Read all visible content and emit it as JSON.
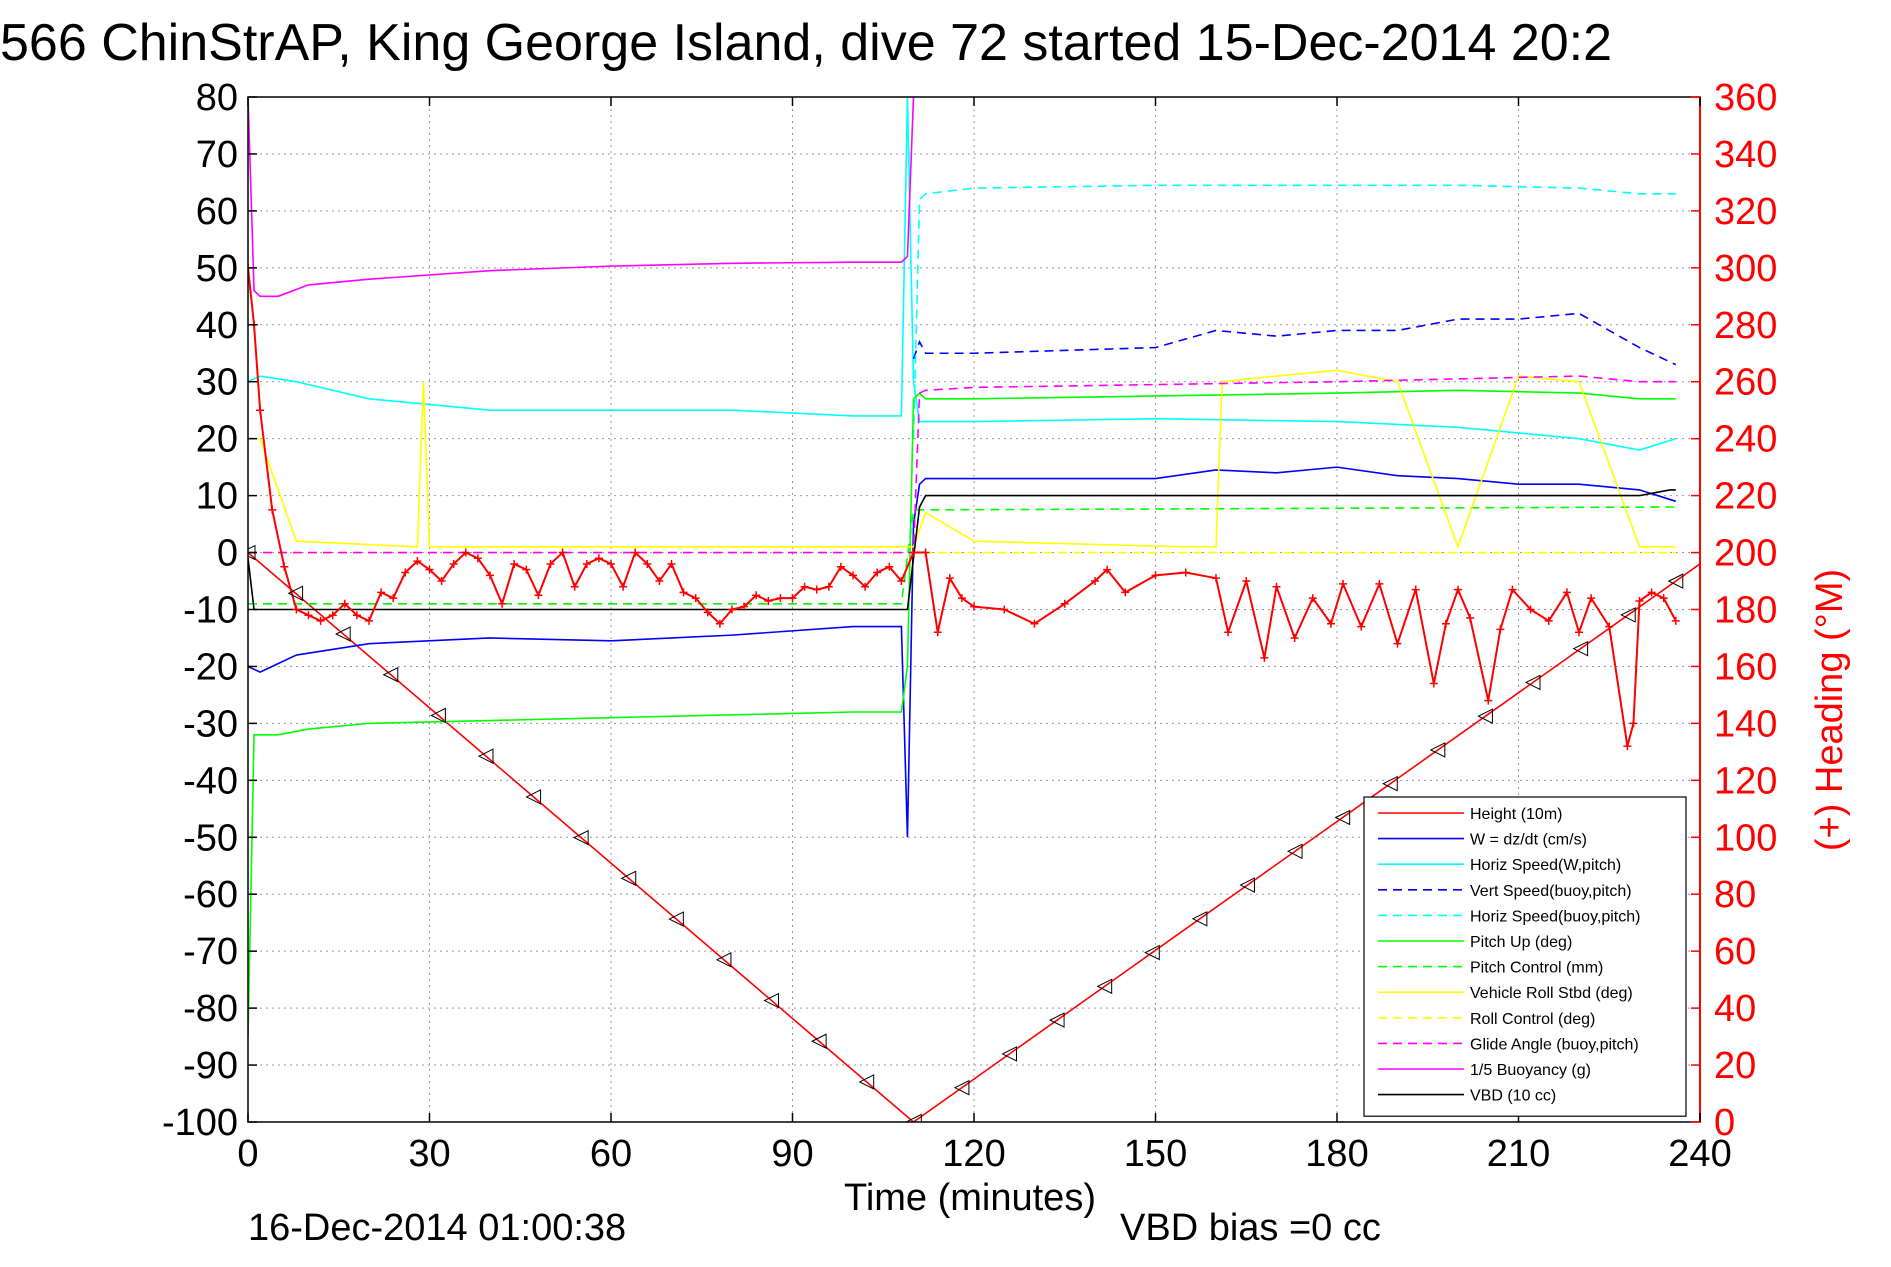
{
  "chart_data": {
    "type": "line",
    "title": "566 ChinStrAP, King George Island, dive 72 started 15-Dec-2014 20:2",
    "xlabel": "Time (minutes)",
    "ylabel_right": "(+) Heading (°M)",
    "footer_left": "16-Dec-2014 01:00:38",
    "footer_right": "VBD bias =0 cc",
    "xlim": [
      0,
      240
    ],
    "ylim_left": [
      -100,
      80
    ],
    "ylim_right": [
      0,
      360
    ],
    "xticks": [
      "0",
      "30",
      "60",
      "90",
      "120",
      "150",
      "180",
      "210",
      "240"
    ],
    "yticks_left": [
      "80",
      "70",
      "60",
      "50",
      "40",
      "30",
      "20",
      "10",
      "0",
      "-10",
      "-20",
      "-30",
      "-40",
      "-50",
      "-60",
      "-70",
      "-80",
      "-90",
      "-100"
    ],
    "yticks_right": [
      "360",
      "340",
      "320",
      "300",
      "280",
      "260",
      "240",
      "220",
      "200",
      "180",
      "160",
      "140",
      "120",
      "100",
      "80",
      "60",
      "40",
      "20",
      "0"
    ],
    "grid": true,
    "legend_position": "bottom-right",
    "right_axis_color": "#ff0000",
    "series": [
      {
        "name": "Height (10m)",
        "color": "#ff0000",
        "dash": "solid",
        "x": [
          0,
          110,
          240
        ],
        "y": [
          0,
          -100,
          -2
        ]
      },
      {
        "name": "W = dz/dt (cm/s)",
        "color": "#0000ff",
        "dash": "solid",
        "x": [
          0,
          2,
          8,
          20,
          40,
          60,
          80,
          100,
          108,
          109,
          110,
          111,
          112,
          120,
          150,
          160,
          170,
          180,
          190,
          200,
          210,
          220,
          230,
          236
        ],
        "y": [
          -20,
          -21,
          -18,
          -16,
          -15,
          -15.5,
          -14.5,
          -13,
          -13,
          -50,
          5,
          12,
          13,
          13,
          13,
          14.5,
          14,
          15,
          13.5,
          13,
          12,
          12,
          11,
          9
        ]
      },
      {
        "name": "Horiz Speed(W,pitch)",
        "color": "#00ffff",
        "dash": "solid",
        "x": [
          0,
          2,
          8,
          20,
          40,
          60,
          80,
          100,
          108,
          109,
          110,
          111,
          112,
          120,
          150,
          180,
          200,
          220,
          230,
          236
        ],
        "y": [
          30,
          31,
          30,
          27,
          25,
          25,
          25,
          24,
          24,
          80,
          30,
          23,
          23,
          23,
          23.5,
          23,
          22,
          20,
          18,
          20
        ]
      },
      {
        "name": "Vert Speed(buoy,pitch)",
        "color": "#0000ff",
        "dash": "dashed",
        "x": [
          110,
          111,
          112,
          120,
          150,
          160,
          170,
          180,
          190,
          200,
          210,
          220,
          230,
          236
        ],
        "y": [
          34,
          37,
          35,
          35,
          36,
          39,
          38,
          39,
          39,
          41,
          41,
          42,
          36,
          33
        ]
      },
      {
        "name": "Horiz Speed(buoy,pitch)",
        "color": "#00ffff",
        "dash": "dashed",
        "x": [
          110,
          111,
          112,
          120,
          150,
          180,
          200,
          220,
          230,
          236
        ],
        "y": [
          20,
          62,
          63,
          64,
          64.5,
          64.5,
          64.5,
          64,
          63,
          63
        ]
      },
      {
        "name": "Pitch Up (deg)",
        "color": "#00ff00",
        "dash": "solid",
        "x": [
          0,
          1,
          2,
          5,
          10,
          20,
          40,
          60,
          80,
          100,
          108,
          109,
          110,
          111,
          112,
          120,
          150,
          180,
          200,
          220,
          230,
          236
        ],
        "y": [
          -85,
          -32,
          -32,
          -32,
          -31,
          -30,
          -29.5,
          -29,
          -28.5,
          -28,
          -28,
          -20,
          27,
          28,
          27,
          27,
          27.5,
          28,
          28.5,
          28,
          27,
          27
        ]
      },
      {
        "name": "Pitch Control (mm)",
        "color": "#00ff00",
        "dash": "dashed",
        "x": [
          0,
          2,
          108,
          110,
          112,
          236
        ],
        "y": [
          -9,
          -9,
          -9,
          7.5,
          7.5,
          8
        ]
      },
      {
        "name": "Vehicle Roll Stbd (deg)",
        "color": "#ffff00",
        "dash": "solid",
        "x": [
          0,
          2,
          8,
          28,
          29,
          30,
          60,
          90,
          108,
          110,
          112,
          120,
          155,
          160,
          161,
          170,
          180,
          190,
          200,
          210,
          220,
          230,
          236
        ],
        "y": [
          20,
          20,
          2,
          1,
          30,
          1,
          1,
          1,
          1,
          1,
          7,
          2,
          1,
          1,
          30,
          31,
          32,
          30,
          1,
          31,
          30,
          1,
          1
        ]
      },
      {
        "name": "Roll Control (deg)",
        "color": "#ffff00",
        "dash": "dashed",
        "x": [
          0,
          2,
          108,
          110,
          236
        ],
        "y": [
          0,
          0,
          0,
          0,
          0
        ]
      },
      {
        "name": "Glide Angle (buoy,pitch)",
        "color": "#ff00ff",
        "dash": "dashed",
        "x": [
          0,
          110,
          111,
          112,
          120,
          150,
          180,
          200,
          220,
          230,
          236
        ],
        "y": [
          0,
          0,
          28,
          28.5,
          29,
          29.5,
          30,
          30.5,
          31,
          30,
          30
        ]
      },
      {
        "name": "1/5 Buoyancy (g)",
        "color": "#ff00ff",
        "dash": "solid",
        "x": [
          0,
          1,
          2,
          5,
          10,
          20,
          40,
          60,
          80,
          100,
          108,
          109,
          110
        ],
        "y": [
          80,
          46,
          45,
          45,
          47,
          48,
          49.5,
          50.3,
          50.8,
          51,
          51,
          52,
          80
        ]
      },
      {
        "name": "VBD (10 cc)",
        "color": "#000000",
        "dash": "solid",
        "x": [
          0,
          1,
          2,
          108,
          109,
          111,
          112,
          230,
          235,
          236
        ],
        "y": [
          -1,
          -10,
          -10,
          -10,
          -10,
          8,
          10,
          10,
          11,
          11
        ]
      },
      {
        "name": "Heading",
        "axis": "right",
        "color": "#ff0000",
        "marker": "+",
        "dash": "none",
        "x": [
          0,
          1,
          2,
          4,
          6,
          8,
          10,
          12,
          14,
          16,
          18,
          20,
          22,
          24,
          26,
          28,
          30,
          32,
          34,
          36,
          38,
          40,
          42,
          44,
          46,
          48,
          50,
          52,
          54,
          56,
          58,
          60,
          62,
          64,
          66,
          68,
          70,
          72,
          74,
          76,
          78,
          80,
          82,
          84,
          86,
          88,
          90,
          92,
          94,
          96,
          98,
          100,
          102,
          104,
          106,
          108,
          110,
          112,
          114,
          116,
          118,
          120,
          125,
          130,
          135,
          140,
          142,
          145,
          150,
          155,
          160,
          162,
          165,
          168,
          170,
          173,
          176,
          179,
          181,
          184,
          187,
          190,
          193,
          196,
          198,
          200,
          202,
          205,
          207,
          209,
          212,
          215,
          218,
          220,
          222,
          225,
          228,
          229,
          230,
          232,
          234,
          236
        ],
        "y": [
          300,
          280,
          250,
          215,
          195,
          180,
          178,
          176,
          178,
          182,
          178,
          176,
          186,
          184,
          193,
          197,
          194,
          190,
          196,
          200,
          198,
          192,
          182,
          196,
          194,
          185,
          196,
          200,
          188,
          196,
          198,
          196,
          188,
          200,
          196,
          190,
          196,
          186,
          184,
          179,
          175,
          180,
          181,
          185,
          183,
          184,
          184,
          188,
          187,
          188,
          195,
          192,
          188,
          193,
          195,
          190,
          200,
          200,
          172,
          191,
          184,
          181,
          180,
          175,
          182,
          190,
          194,
          186,
          192,
          193,
          191,
          172,
          190,
          163,
          188,
          170,
          184,
          175,
          189,
          174,
          189,
          168,
          187,
          154,
          175,
          187,
          177,
          148,
          173,
          187,
          180,
          176,
          186,
          172,
          184,
          174,
          132,
          140,
          183,
          186,
          184,
          176
        ]
      }
    ]
  }
}
